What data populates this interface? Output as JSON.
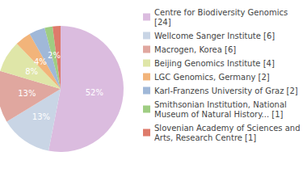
{
  "chart_data": {
    "type": "pie",
    "categories": [
      "Centre for Biodiversity Genomics [24]",
      "Wellcome Sanger Institute [6]",
      "Macrogen, Korea [6]",
      "Beijing Genomics Institute [4]",
      "LGC Genomics, Germany [2]",
      "Karl-Franzens University of Graz [2]",
      "Smithsonian Institution, National Museum of Natural History... [1]",
      "Slovenian Academy of Sciences and Arts, Research Centre [1]"
    ],
    "values": [
      52,
      13,
      13,
      8,
      4,
      4,
      2,
      2
    ],
    "value_labels": [
      "52%",
      "13%",
      "13%",
      "8%",
      "4%",
      "4%",
      "2%",
      "2%"
    ],
    "colors": [
      "#dbbcdf",
      "#c9d5e5",
      "#e0a79f",
      "#dfe6a8",
      "#f2b47a",
      "#a0b8d8",
      "#9fcd82",
      "#de7b6b"
    ],
    "data_labels": true,
    "legend": "right"
  }
}
